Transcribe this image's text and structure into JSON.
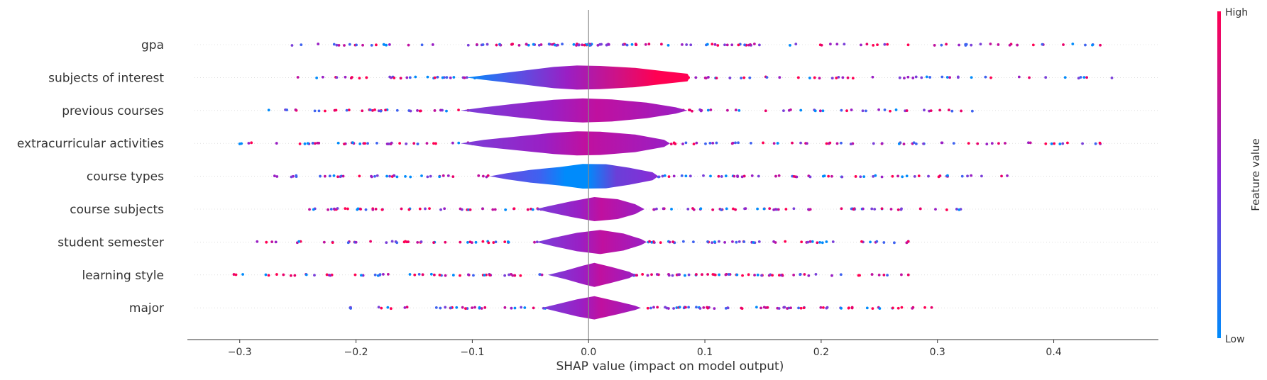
{
  "chart_data": {
    "type": "scatter",
    "subtype": "shap-violin-summary",
    "title": "",
    "xlabel": "SHAP value (impact on model output)",
    "ylabel": "",
    "xlim": [
      -0.345,
      0.49
    ],
    "x_ticks": [
      -0.3,
      -0.2,
      -0.1,
      0.0,
      0.1,
      0.2,
      0.3,
      0.4
    ],
    "x_tick_labels": [
      "−0.3",
      "−0.2",
      "−0.1",
      "0.0",
      "0.1",
      "0.2",
      "0.3",
      "0.4"
    ],
    "zero_line": 0.0,
    "grid": false,
    "colorbar": {
      "title": "Feature value",
      "high_label": "High",
      "low_label": "Low",
      "high_color": "#ff0052",
      "low_color": "#008bfb"
    },
    "features": [
      {
        "name": "gpa",
        "min": -0.255,
        "max": 0.44,
        "violin": []
      },
      {
        "name": "subjects of interest",
        "min": -0.25,
        "max": 0.45,
        "violin": [
          [
            -0.105,
            0.0
          ],
          [
            -0.09,
            0.16
          ],
          [
            -0.06,
            0.45
          ],
          [
            -0.03,
            0.75
          ],
          [
            -0.01,
            0.85
          ],
          [
            0.01,
            0.82
          ],
          [
            0.04,
            0.68
          ],
          [
            0.07,
            0.4
          ],
          [
            0.085,
            0.27
          ],
          [
            0.087,
            0.0
          ]
        ]
      },
      {
        "name": "previous courses",
        "min": -0.275,
        "max": 0.33,
        "violin": [
          [
            -0.11,
            0.0
          ],
          [
            -0.09,
            0.22
          ],
          [
            -0.06,
            0.5
          ],
          [
            -0.03,
            0.75
          ],
          [
            -0.005,
            0.85
          ],
          [
            0.02,
            0.78
          ],
          [
            0.05,
            0.55
          ],
          [
            0.075,
            0.22
          ],
          [
            0.085,
            0.0
          ]
        ]
      },
      {
        "name": "extracurricular activities",
        "min": -0.3,
        "max": 0.44,
        "violin": [
          [
            -0.11,
            0.0
          ],
          [
            -0.09,
            0.25
          ],
          [
            -0.06,
            0.5
          ],
          [
            -0.03,
            0.75
          ],
          [
            -0.01,
            0.85
          ],
          [
            0.01,
            0.82
          ],
          [
            0.04,
            0.62
          ],
          [
            0.065,
            0.25
          ],
          [
            0.07,
            0.0
          ]
        ]
      },
      {
        "name": "course types",
        "min": -0.27,
        "max": 0.36,
        "violin": [
          [
            -0.085,
            0.0
          ],
          [
            -0.07,
            0.22
          ],
          [
            -0.05,
            0.45
          ],
          [
            -0.025,
            0.65
          ],
          [
            -0.005,
            0.87
          ],
          [
            0.015,
            0.85
          ],
          [
            0.035,
            0.6
          ],
          [
            0.055,
            0.28
          ],
          [
            0.06,
            0.0
          ]
        ]
      },
      {
        "name": "course subjects",
        "min": -0.24,
        "max": 0.32,
        "violin": [
          [
            -0.045,
            0.0
          ],
          [
            -0.035,
            0.2
          ],
          [
            -0.015,
            0.55
          ],
          [
            0.005,
            0.85
          ],
          [
            0.025,
            0.7
          ],
          [
            0.04,
            0.35
          ],
          [
            0.048,
            0.0
          ]
        ]
      },
      {
        "name": "student semester",
        "min": -0.285,
        "max": 0.275,
        "violin": [
          [
            -0.045,
            0.0
          ],
          [
            -0.03,
            0.3
          ],
          [
            -0.01,
            0.65
          ],
          [
            0.01,
            0.85
          ],
          [
            0.03,
            0.6
          ],
          [
            0.045,
            0.22
          ],
          [
            0.05,
            0.0
          ]
        ]
      },
      {
        "name": "learning style",
        "min": -0.305,
        "max": 0.275,
        "violin": [
          [
            -0.035,
            0.0
          ],
          [
            -0.02,
            0.3
          ],
          [
            -0.005,
            0.65
          ],
          [
            0.005,
            0.85
          ],
          [
            0.02,
            0.55
          ],
          [
            0.035,
            0.22
          ],
          [
            0.04,
            0.0
          ]
        ]
      },
      {
        "name": "major",
        "min": -0.205,
        "max": 0.295,
        "violin": [
          [
            -0.04,
            0.0
          ],
          [
            -0.025,
            0.3
          ],
          [
            -0.01,
            0.6
          ],
          [
            0.005,
            0.82
          ],
          [
            0.025,
            0.45
          ],
          [
            0.04,
            0.15
          ],
          [
            0.045,
            0.0
          ]
        ]
      }
    ]
  }
}
